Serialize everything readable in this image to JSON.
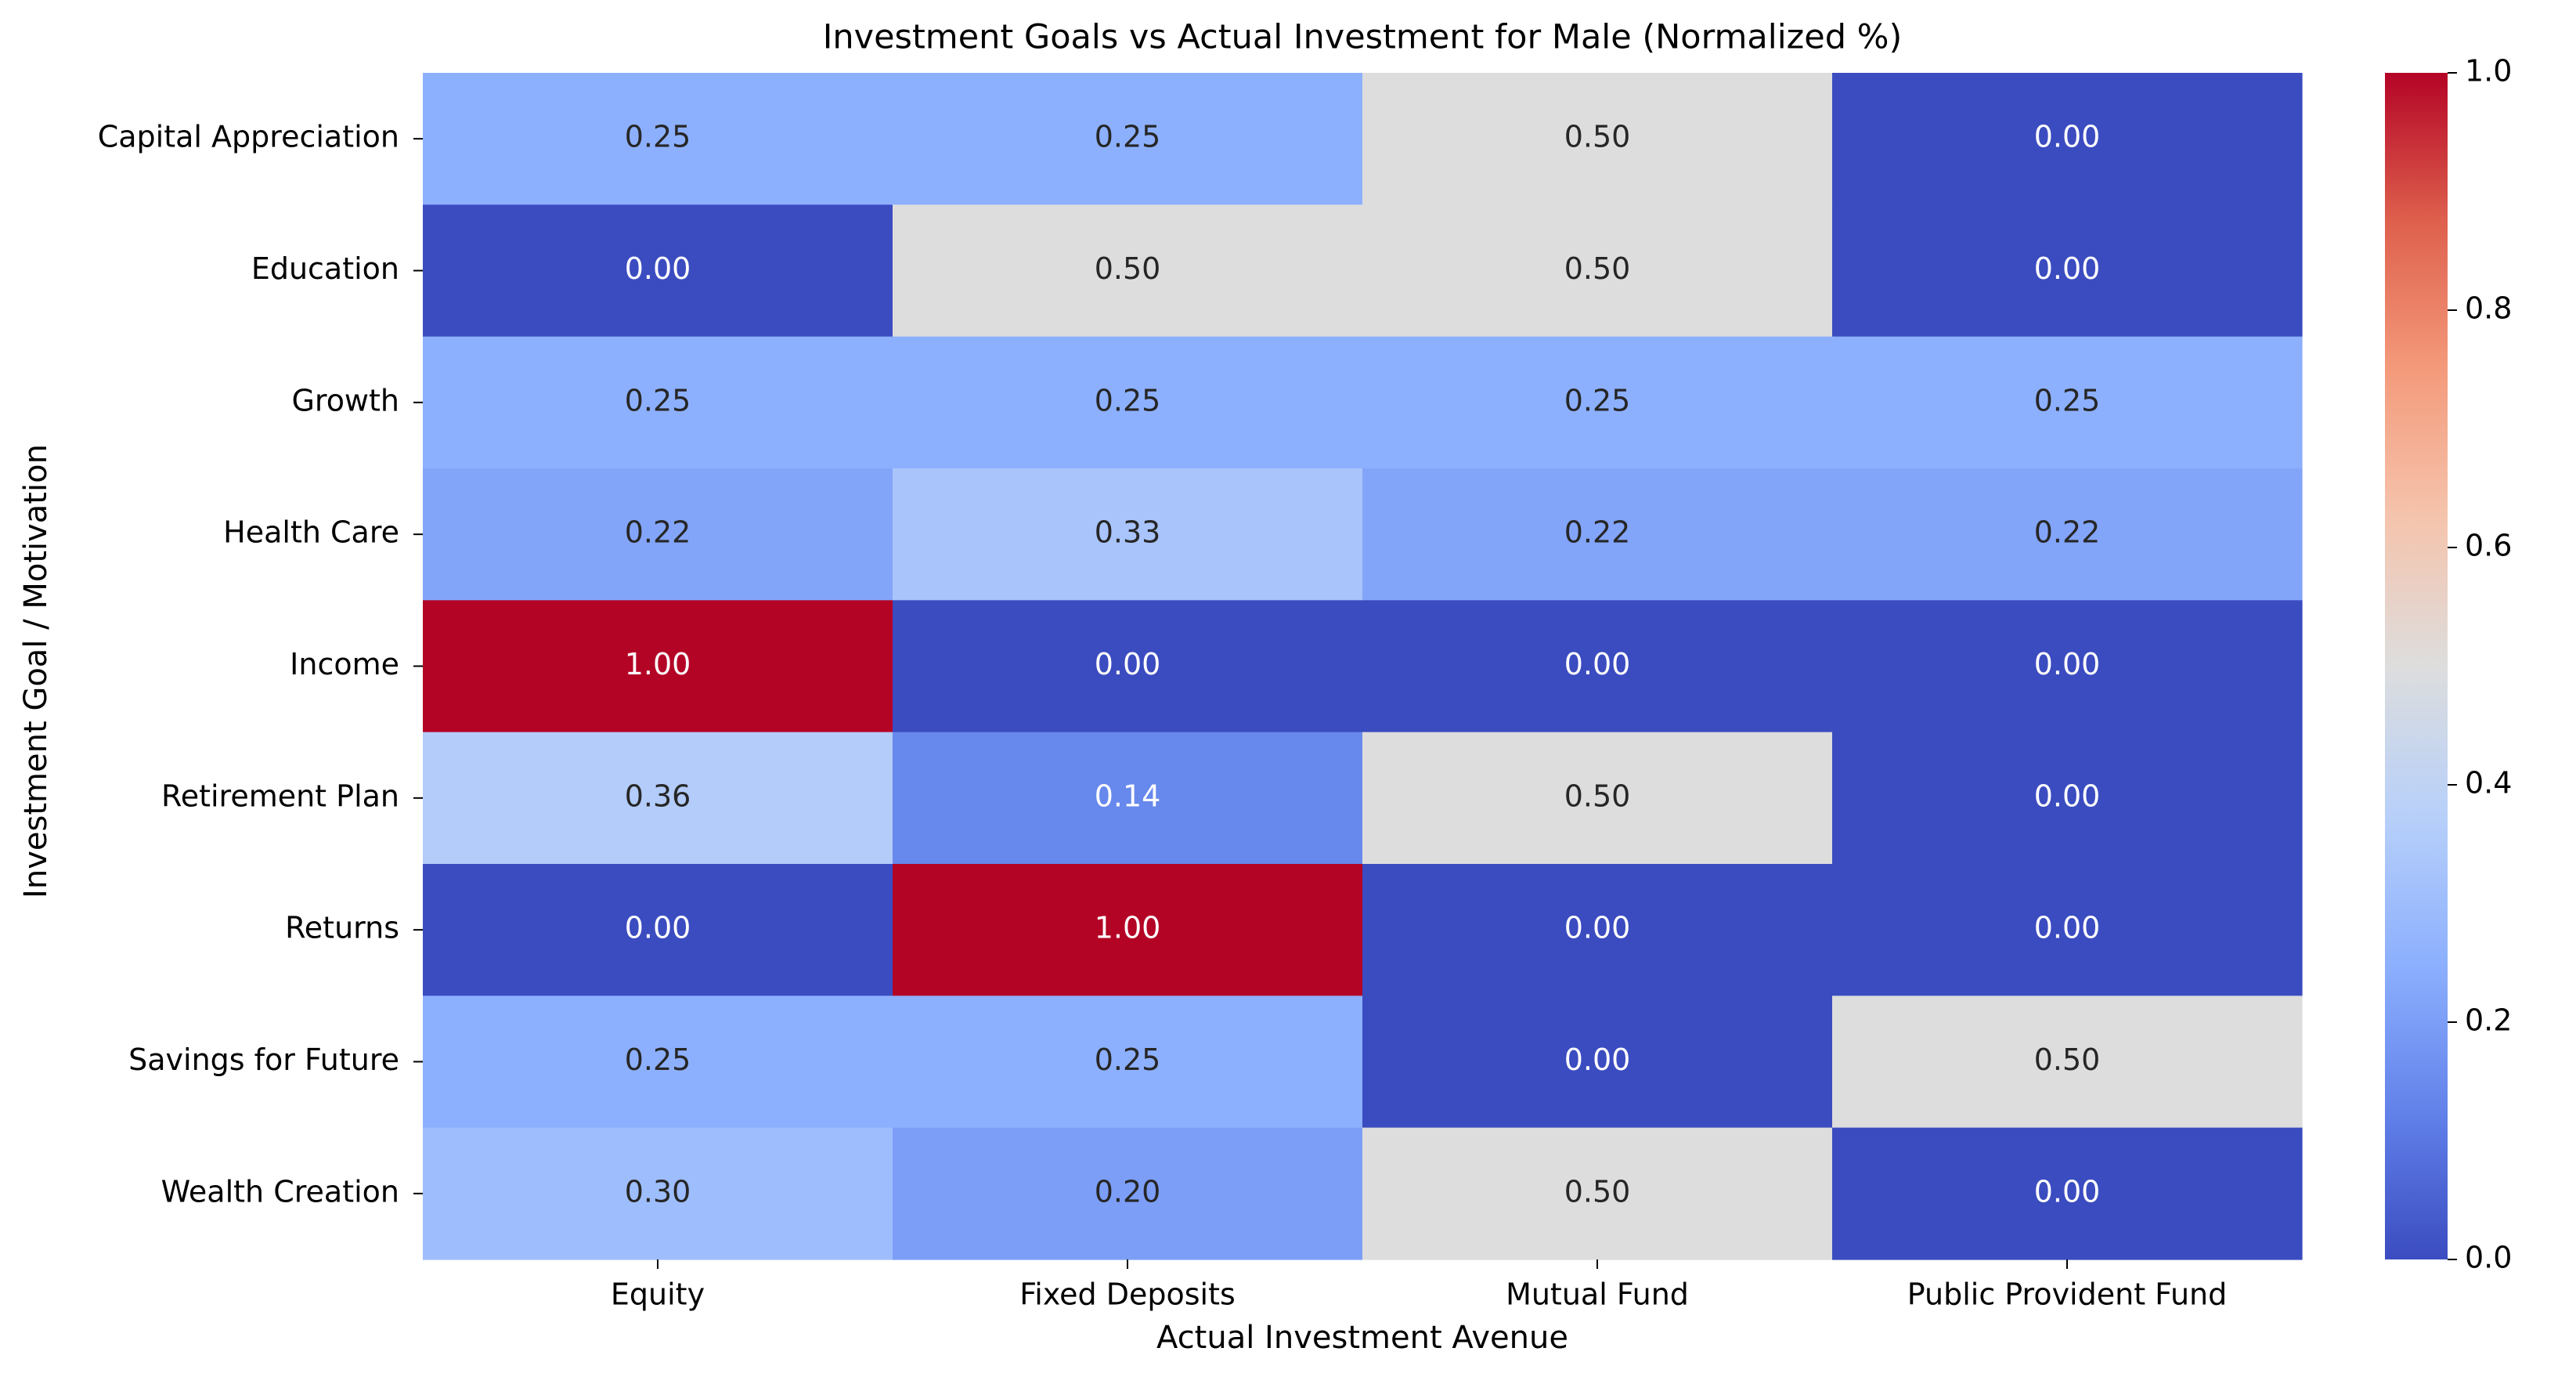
{
  "chart_data": {
    "type": "heatmap",
    "title": "Investment Goals vs Actual Investment for Male (Normalized %)",
    "xlabel": "Actual Investment Avenue",
    "ylabel": "Investment Goal / Motivation",
    "x_categories": [
      "Equity",
      "Fixed Deposits",
      "Mutual Fund",
      "Public Provident Fund"
    ],
    "y_categories": [
      "Capital Appreciation",
      "Education",
      "Growth",
      "Health Care",
      "Income",
      "Retirement Plan",
      "Returns",
      "Savings for Future",
      "Wealth Creation"
    ],
    "values": [
      [
        0.25,
        0.25,
        0.5,
        0.0
      ],
      [
        0.0,
        0.5,
        0.5,
        0.0
      ],
      [
        0.25,
        0.25,
        0.25,
        0.25
      ],
      [
        0.22,
        0.33,
        0.22,
        0.22
      ],
      [
        1.0,
        0.0,
        0.0,
        0.0
      ],
      [
        0.36,
        0.14,
        0.5,
        0.0
      ],
      [
        0.0,
        1.0,
        0.0,
        0.0
      ],
      [
        0.25,
        0.25,
        0.0,
        0.5
      ],
      [
        0.3,
        0.2,
        0.5,
        0.0
      ]
    ],
    "value_format": "0.00",
    "colormap": "coolwarm",
    "color_range": [
      0.0,
      1.0
    ],
    "colorbar": {
      "ticks": [
        "0.0",
        "0.2",
        "0.4",
        "0.6",
        "0.8",
        "1.0"
      ],
      "tick_values": [
        0.0,
        0.2,
        0.4,
        0.6,
        0.8,
        1.0
      ]
    },
    "colors": {
      "low": "#3b4cc0",
      "mid": "#dddddd",
      "high": "#b40426"
    }
  }
}
